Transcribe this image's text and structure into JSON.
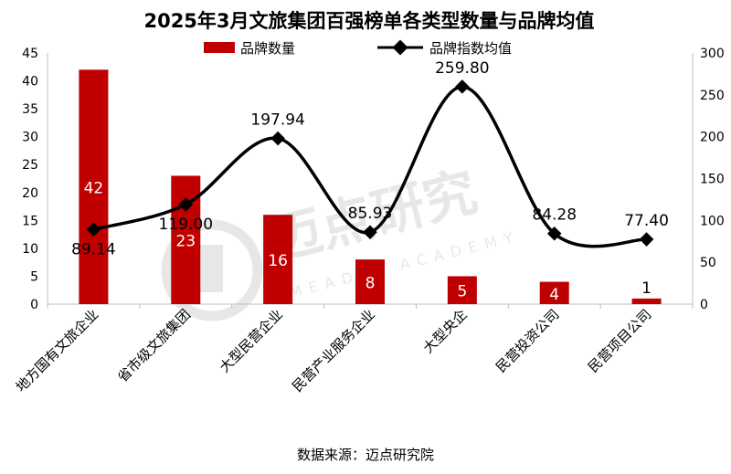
{
  "chart_data": {
    "type": "bar",
    "title": "2025年3月文旅集团百强榜单各类型数量与品牌均值",
    "source": "数据来源：迈点研究院",
    "watermark": {
      "brand": "迈点研究",
      "sub": "MEADIN ACADEMY"
    },
    "categories": [
      "地方国有文旅企业",
      "省市级文旅集团",
      "大型民营企业",
      "民营产业服务企业",
      "大型央企",
      "民营投资公司",
      "民营项目公司"
    ],
    "series": [
      {
        "name": "品牌数量",
        "type": "bar",
        "axis": "left",
        "color": "#c00000",
        "values": [
          42,
          23,
          16,
          8,
          5,
          4,
          1
        ],
        "labels": [
          "42",
          "23",
          "16",
          "8",
          "5",
          "4",
          "1"
        ]
      },
      {
        "name": "品牌指数均值",
        "type": "line",
        "axis": "right",
        "color": "#000000",
        "values": [
          89.14,
          119.0,
          197.94,
          85.93,
          259.8,
          84.28,
          77.4
        ],
        "labels": [
          "89.14",
          "119.00",
          "197.94",
          "85.93",
          "259.80",
          "84.28",
          "77.40"
        ]
      }
    ],
    "y_left": {
      "min": 0,
      "max": 45,
      "step": 5,
      "ticks": [
        "0",
        "5",
        "10",
        "15",
        "20",
        "25",
        "30",
        "35",
        "40",
        "45"
      ]
    },
    "y_right": {
      "min": 0,
      "max": 300,
      "step": 50,
      "ticks": [
        "0",
        "50",
        "100",
        "150",
        "200",
        "250",
        "300"
      ]
    },
    "legend": "top-center",
    "grid": false
  }
}
